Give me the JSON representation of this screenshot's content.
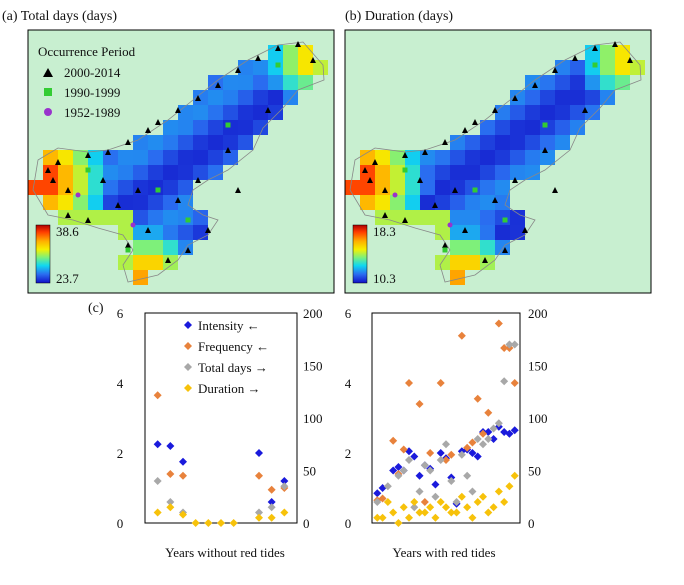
{
  "panels": {
    "a": {
      "title": "(a) Total days  (days)",
      "colorbar": {
        "max": "38.6",
        "min": "23.7"
      },
      "legend": {
        "title": "Occurrence Period",
        "items": [
          {
            "label": "2000-2014",
            "shape": "triangle",
            "color": "#000000"
          },
          {
            "label": "1990-1999",
            "shape": "square",
            "color": "#33cc33"
          },
          {
            "label": "1952-1989",
            "shape": "circle",
            "color": "#9933cc"
          }
        ]
      }
    },
    "b": {
      "title": "(b) Duration (days)",
      "colorbar": {
        "max": "18.3",
        "min": "10.3"
      }
    },
    "c": {
      "label": "(c)"
    }
  },
  "colors": {
    "land": "#c8efd0",
    "intensity": "#1a1adc",
    "frequency": "#e8823c",
    "total_days": "#a8a8a8",
    "duration": "#f7c20a"
  },
  "chart_data": [
    {
      "type": "scatter",
      "title": "Years without red tides",
      "xlabel": "Years without red tides",
      "left_axis": {
        "ticks": [
          "0",
          "2",
          "4",
          "6"
        ],
        "range": [
          0,
          6
        ]
      },
      "right_axis": {
        "ticks": [
          "0",
          "50",
          "100",
          "150",
          "200"
        ],
        "range": [
          0,
          200
        ]
      },
      "legend": [
        {
          "name": "Intensity",
          "arrow": "←",
          "label": "Intensity ←"
        },
        {
          "name": "Frequency",
          "arrow": "←",
          "label": "Frequency ←"
        },
        {
          "name": "Total days",
          "arrow": "→",
          "label": "Total days →"
        },
        {
          "name": "Duration",
          "arrow": "→",
          "label": "Duration →"
        }
      ],
      "series": [
        {
          "name": "Intensity",
          "axis": "left",
          "points": [
            [
              1,
              2.25
            ],
            [
              2,
              2.2
            ],
            [
              3,
              1.75
            ],
            [
              9,
              2.0
            ],
            [
              10,
              0.6
            ],
            [
              11,
              1.2
            ]
          ]
        },
        {
          "name": "Frequency",
          "axis": "left",
          "points": [
            [
              1,
              3.65
            ],
            [
              2,
              1.4
            ],
            [
              3,
              1.35
            ],
            [
              9,
              1.35
            ],
            [
              10,
              0.95
            ],
            [
              11,
              1.0
            ]
          ]
        },
        {
          "name": "Total days",
          "axis": "right",
          "points": [
            [
              1,
              40
            ],
            [
              2,
              20
            ],
            [
              3,
              10
            ],
            [
              9,
              10
            ],
            [
              10,
              15
            ],
            [
              11,
              35
            ]
          ]
        },
        {
          "name": "Duration",
          "axis": "right",
          "points": [
            [
              1,
              10
            ],
            [
              2,
              15
            ],
            [
              3,
              8
            ],
            [
              4,
              0
            ],
            [
              5,
              0
            ],
            [
              6,
              0
            ],
            [
              7,
              0
            ],
            [
              9,
              5
            ],
            [
              10,
              5
            ],
            [
              11,
              10
            ]
          ]
        }
      ]
    },
    {
      "type": "scatter",
      "title": "Years with red tides",
      "xlabel": "Years with red tides",
      "left_axis": {
        "ticks": [
          "0",
          "2",
          "4",
          "6"
        ],
        "range": [
          0,
          6
        ]
      },
      "right_axis": {
        "ticks": [
          "0",
          "50",
          "100",
          "150",
          "200"
        ],
        "range": [
          0,
          200
        ]
      },
      "series": [
        {
          "name": "Intensity",
          "axis": "left",
          "points": [
            [
              1,
              0.85
            ],
            [
              2,
              1.0
            ],
            [
              4,
              1.5
            ],
            [
              5,
              1.6
            ],
            [
              6,
              1.5
            ],
            [
              7,
              2.05
            ],
            [
              8,
              1.9
            ],
            [
              9,
              1.35
            ],
            [
              10,
              1.65
            ],
            [
              11,
              1.55
            ],
            [
              12,
              1.1
            ],
            [
              13,
              2.0
            ],
            [
              14,
              1.85
            ],
            [
              15,
              1.3
            ],
            [
              16,
              0.55
            ],
            [
              17,
              2.05
            ],
            [
              18,
              2.1
            ],
            [
              19,
              2.0
            ],
            [
              20,
              1.9
            ],
            [
              21,
              2.6
            ],
            [
              22,
              2.6
            ],
            [
              23,
              2.4
            ],
            [
              24,
              2.75
            ],
            [
              25,
              2.6
            ],
            [
              26,
              2.55
            ],
            [
              27,
              2.65
            ]
          ]
        },
        {
          "name": "Frequency",
          "axis": "left",
          "points": [
            [
              1,
              0.65
            ],
            [
              2,
              0.7
            ],
            [
              4,
              2.35
            ],
            [
              5,
              1.4
            ],
            [
              6,
              2.1
            ],
            [
              7,
              4.0
            ],
            [
              9,
              3.4
            ],
            [
              10,
              0.6
            ],
            [
              11,
              2.0
            ],
            [
              13,
              4.0
            ],
            [
              14,
              1.8
            ],
            [
              15,
              1.95
            ],
            [
              17,
              5.35
            ],
            [
              18,
              2.15
            ],
            [
              19,
              2.3
            ],
            [
              20,
              3.55
            ],
            [
              21,
              2.55
            ],
            [
              22,
              3.15
            ],
            [
              24,
              5.7
            ],
            [
              25,
              5.0
            ],
            [
              26,
              5.0
            ],
            [
              27,
              4.0
            ]
          ]
        },
        {
          "name": "Total days",
          "axis": "right",
          "points": [
            [
              1,
              20
            ],
            [
              3,
              35
            ],
            [
              5,
              45
            ],
            [
              6,
              50
            ],
            [
              7,
              60
            ],
            [
              8,
              15
            ],
            [
              9,
              30
            ],
            [
              10,
              55
            ],
            [
              11,
              50
            ],
            [
              12,
              25
            ],
            [
              13,
              60
            ],
            [
              14,
              75
            ],
            [
              15,
              40
            ],
            [
              16,
              20
            ],
            [
              17,
              65
            ],
            [
              18,
              45
            ],
            [
              19,
              30
            ],
            [
              20,
              80
            ],
            [
              21,
              75
            ],
            [
              22,
              80
            ],
            [
              23,
              90
            ],
            [
              24,
              95
            ],
            [
              25,
              135
            ],
            [
              26,
              170
            ],
            [
              27,
              170
            ]
          ]
        },
        {
          "name": "Duration",
          "axis": "right",
          "points": [
            [
              1,
              5
            ],
            [
              2,
              5
            ],
            [
              3,
              20
            ],
            [
              4,
              10
            ],
            [
              5,
              0
            ],
            [
              6,
              15
            ],
            [
              7,
              5
            ],
            [
              8,
              20
            ],
            [
              9,
              10
            ],
            [
              10,
              10
            ],
            [
              11,
              15
            ],
            [
              12,
              5
            ],
            [
              13,
              20
            ],
            [
              14,
              15
            ],
            [
              15,
              10
            ],
            [
              16,
              10
            ],
            [
              17,
              25
            ],
            [
              18,
              15
            ],
            [
              19,
              5
            ],
            [
              20,
              20
            ],
            [
              21,
              25
            ],
            [
              22,
              10
            ],
            [
              23,
              15
            ],
            [
              24,
              30
            ],
            [
              25,
              20
            ],
            [
              26,
              35
            ],
            [
              27,
              45
            ]
          ]
        }
      ]
    }
  ]
}
